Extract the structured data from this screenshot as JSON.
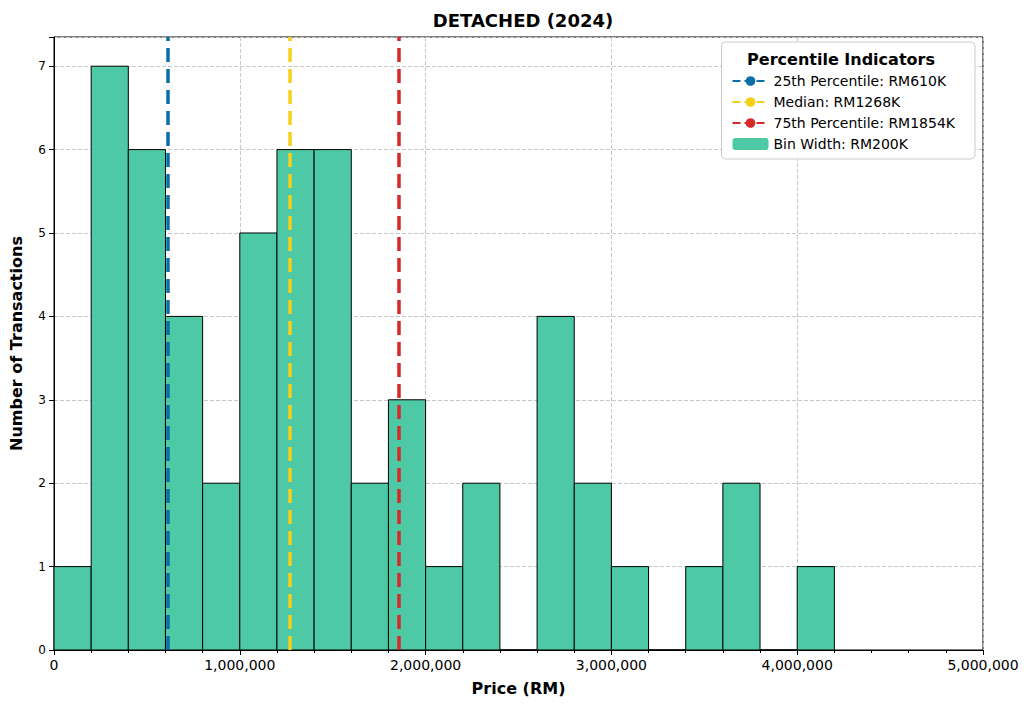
{
  "chart_data": {
    "type": "histogram",
    "title": "DETACHED (2024)",
    "x_label": "Price (RM)",
    "y_label": "Number of Transactions",
    "series_name": "Bin Width: RM200K",
    "color": "#4dc9a6",
    "bins": [
      0,
      200000,
      400000,
      600000,
      800000,
      1000000,
      1200000,
      1400000,
      1600000,
      1800000,
      2000000,
      2200000,
      2400000,
      2600000,
      2800000,
      3000000,
      3200000,
      3400000,
      3600000,
      3800000,
      4000000,
      4200000
    ],
    "counts": [
      1,
      7,
      6,
      4,
      2,
      5,
      6,
      6,
      2,
      3,
      1,
      2,
      0,
      4,
      2,
      1,
      0,
      1,
      2,
      0,
      1
    ],
    "reference_lines": [
      {
        "name": "25th Percentile: RM610K",
        "value": 610000,
        "color": "#0a6fa8",
        "line_style": "dashed"
      },
      {
        "name": "Median: RM1268K",
        "value": 1268000,
        "color": "#f5d01a",
        "line_style": "dashed"
      },
      {
        "name": "75th Percentile: RM1854K",
        "value": 1854000,
        "color": "#d62a2a",
        "line_style": "dashed"
      }
    ],
    "legend_title": "Percentile Indicators",
    "legend": "upper right",
    "xlim": [
      0,
      5000000
    ],
    "ylim": [
      0,
      7.35
    ],
    "xticks": [
      0,
      {
        "value": 1000000,
        "label": "1,000,000"
      },
      {
        "value": 2000000,
        "label": "2,000,000"
      },
      {
        "value": 3000000,
        "label": "3,000,000"
      },
      {
        "value": 4000000,
        "label": "4,000,000"
      },
      {
        "value": 5000000,
        "label": "5,000,000"
      }
    ],
    "yticks": [
      0,
      1,
      2,
      3,
      4,
      5,
      6,
      7
    ],
    "grid": true
  }
}
